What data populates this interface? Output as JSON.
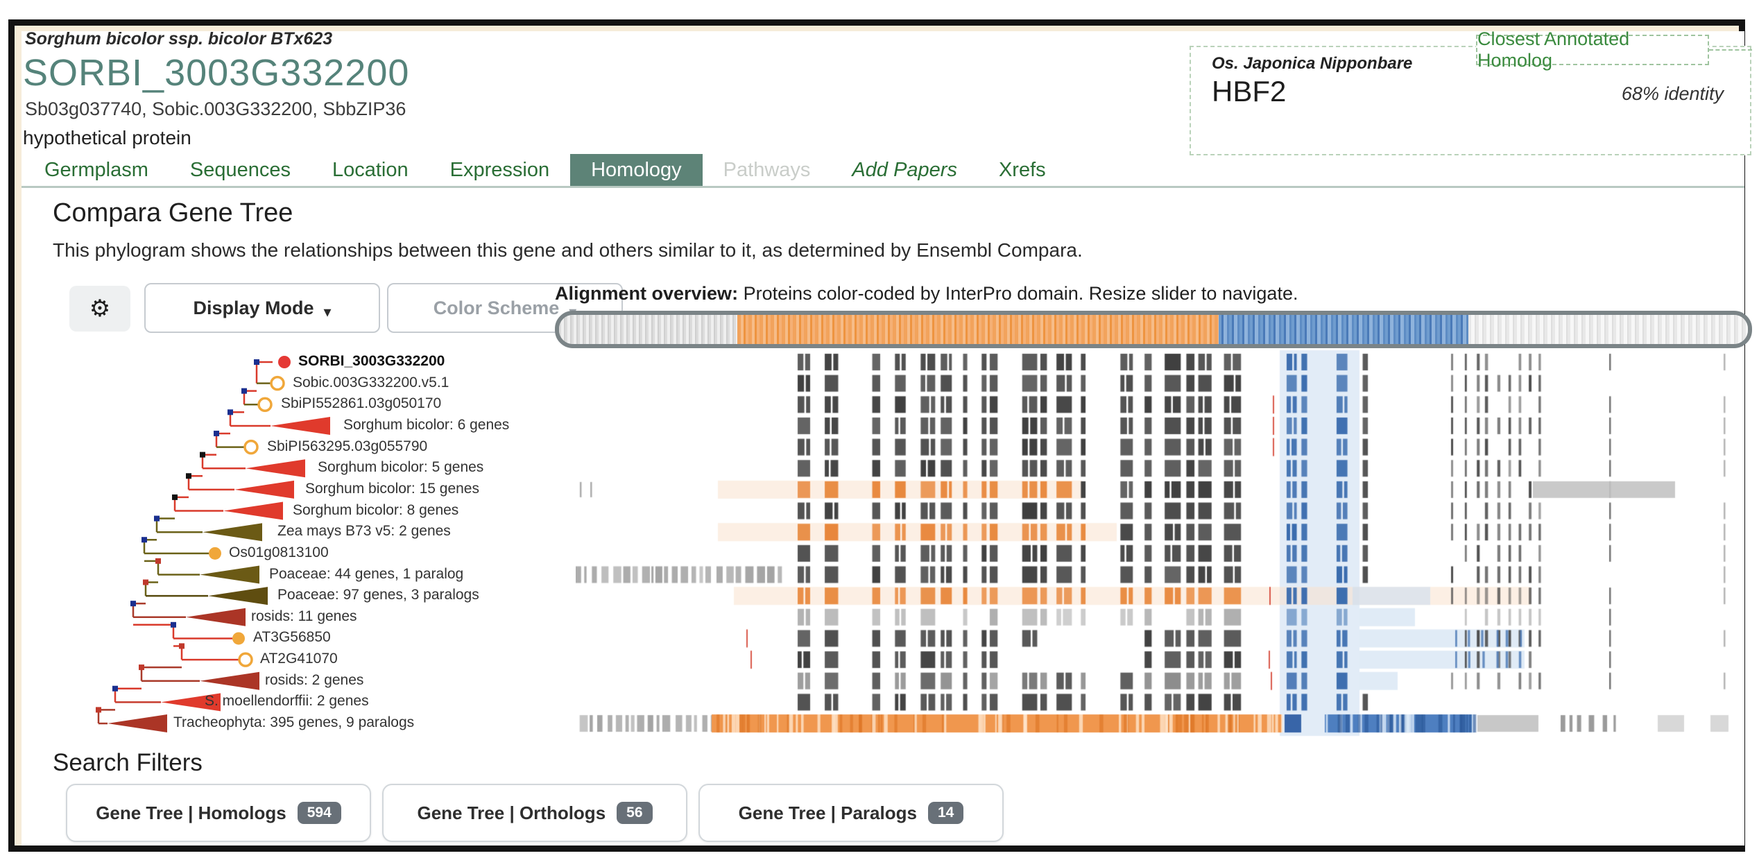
{
  "header": {
    "species": "Sorghum bicolor ssp. bicolor BTx623",
    "gene_id": "SORBI_3003G332200",
    "synonyms": "Sb03g037740, Sobic.003G332200, SbbZIP36",
    "description": "hypothetical protein"
  },
  "homolog_panel": {
    "chip_label": "Closest Annotated Homolog",
    "species": "Os. Japonica Nipponbare",
    "gene": "HBF2",
    "identity": "68% identity"
  },
  "tabs": [
    {
      "label": "Germplasm",
      "state": "normal"
    },
    {
      "label": "Sequences",
      "state": "normal"
    },
    {
      "label": "Location",
      "state": "normal"
    },
    {
      "label": "Expression",
      "state": "normal"
    },
    {
      "label": "Homology",
      "state": "active"
    },
    {
      "label": "Pathways",
      "state": "disabled"
    },
    {
      "label": "Add Papers",
      "state": "italic"
    },
    {
      "label": "Xrefs",
      "state": "normal"
    }
  ],
  "compara": {
    "title": "Compara Gene Tree",
    "description": "This phylogram shows the relationships between this gene and others similar to it, as determined by Ensembl Compara.",
    "gear_icon": "gear",
    "display_mode_label": "Display Mode",
    "color_scheme_label": "Color Scheme",
    "caret_icon": "chevron-down",
    "alignment_header_bold": "Alignment overview:",
    "alignment_header_rest": " Proteins color-coded by InterPro domain. Resize slider to navigate."
  },
  "slider": {
    "segments": [
      {
        "kind": "gray-striped",
        "fraction": 0.15
      },
      {
        "kind": "orange",
        "fraction": 0.405,
        "color": "#f2a35c"
      },
      {
        "kind": "blue",
        "fraction": 0.21,
        "color": "#4a7ab8"
      },
      {
        "kind": "light-gray",
        "fraction": 0.235
      }
    ]
  },
  "tree": {
    "rows": [
      {
        "label": "SORBI_3003G332200",
        "marker": "circle-filled-red",
        "bold": true
      },
      {
        "label": "Sobic.003G332200.v5.1",
        "marker": "circle-open-orange"
      },
      {
        "label": "SbiPI552861.03g050170",
        "marker": "circle-open-orange"
      },
      {
        "label": "Sorghum bicolor: 6 genes",
        "marker": "triangle-red"
      },
      {
        "label": "SbiPI563295.03g055790",
        "marker": "circle-open-orange"
      },
      {
        "label": "Sorghum bicolor: 5 genes",
        "marker": "triangle-red"
      },
      {
        "label": "Sorghum bicolor: 15 genes",
        "marker": "triangle-red"
      },
      {
        "label": "Sorghum bicolor: 8 genes",
        "marker": "triangle-red"
      },
      {
        "label": "Zea mays B73 v5: 2 genes",
        "marker": "triangle-olive"
      },
      {
        "label": "Os01g0813100",
        "marker": "circle-filled-orange"
      },
      {
        "label": "Poaceae: 44 genes, 1 paralog",
        "marker": "triangle-olive"
      },
      {
        "label": "Poaceae: 97 genes, 3 paralogs",
        "marker": "triangle-darkolive"
      },
      {
        "label": "rosids: 11 genes",
        "marker": "triangle-darkred"
      },
      {
        "label": "AT3G56850",
        "marker": "circle-filled-orange"
      },
      {
        "label": "AT2G41070",
        "marker": "circle-open-orange"
      },
      {
        "label": "rosids: 2 genes",
        "marker": "triangle-darkred"
      },
      {
        "label": "S. moellendorffii: 2 genes",
        "marker": "triangle-red"
      },
      {
        "label": "Tracheophyta: 395 genes, 9 paralogs",
        "marker": "triangle-darkred"
      }
    ]
  },
  "alignment": {
    "rows": [
      {
        "style": "dark"
      },
      {
        "style": "dark"
      },
      {
        "style": "dark",
        "red_ticks": [
          1005
        ]
      },
      {
        "style": "dark",
        "red_ticks": [
          1005
        ]
      },
      {
        "style": "dark",
        "red_ticks": [
          1005
        ]
      },
      {
        "style": "dark"
      },
      {
        "style": "dark",
        "tint": [
          205,
          730
        ],
        "left_marks": [
          -32,
          36
        ],
        "right_block": [
          1380,
          1585
        ]
      },
      {
        "style": "dark"
      },
      {
        "style": "dark",
        "tint": [
          205,
          780
        ]
      },
      {
        "style": "dark"
      },
      {
        "style": "dark",
        "left_block": [
          -35,
          292
        ]
      },
      {
        "style": "orange",
        "tint": [
          228,
          1377
        ],
        "pale_ext": [
          1120,
          1232
        ],
        "red_ticks": [
          1000
        ]
      },
      {
        "style": "faint",
        "pale_ext": [
          1130,
          1210
        ]
      },
      {
        "style": "dark",
        "gap": [
          660,
          812
        ],
        "pale_ext": [
          1130,
          1368
        ],
        "blue_ticks": [
          1268,
          1368
        ],
        "red_ticks": [
          246
        ]
      },
      {
        "style": "dark",
        "gap": [
          648,
          800
        ],
        "pale_ext": [
          1130,
          1368
        ],
        "blue_ticks": [
          1268,
          1368
        ],
        "red_ticks": [
          252,
          999
        ]
      },
      {
        "style": "grayish",
        "pale_ext": [
          1130,
          1185
        ],
        "red_ticks": [
          1002
        ]
      },
      {
        "style": "dark",
        "end": 1170,
        "no_sparse": true
      },
      {
        "style": "tracheo",
        "left_block": [
          -35,
          196
        ],
        "tint": [
          196,
          1018
        ],
        "blue_dense": [
          1080,
          1296
        ]
      }
    ]
  },
  "filters": {
    "title": "Search Filters",
    "items": [
      {
        "label": "Gene Tree | Homologs",
        "count": "594"
      },
      {
        "label": "Gene Tree | Orthologs",
        "count": "56"
      },
      {
        "label": "Gene Tree | Paralogs",
        "count": "14"
      }
    ]
  },
  "colors": {
    "accent_teal": "#5d8377",
    "gene_teal": "#55837a",
    "tab_green": "#2a6e35",
    "chip_green": "#3a8a3e",
    "cream": "#f6ecd9",
    "tree_red": "#d93a2b",
    "tree_darkred": "#a93a2a",
    "tree_olive": "#6b6218",
    "node_navy": "#1a2f8f",
    "bar_dark": "#3f3f3f",
    "bar_orange": "#e8873b",
    "bar_blue": "#3a6cae",
    "pale_blue_band": "#d4e2f2"
  }
}
